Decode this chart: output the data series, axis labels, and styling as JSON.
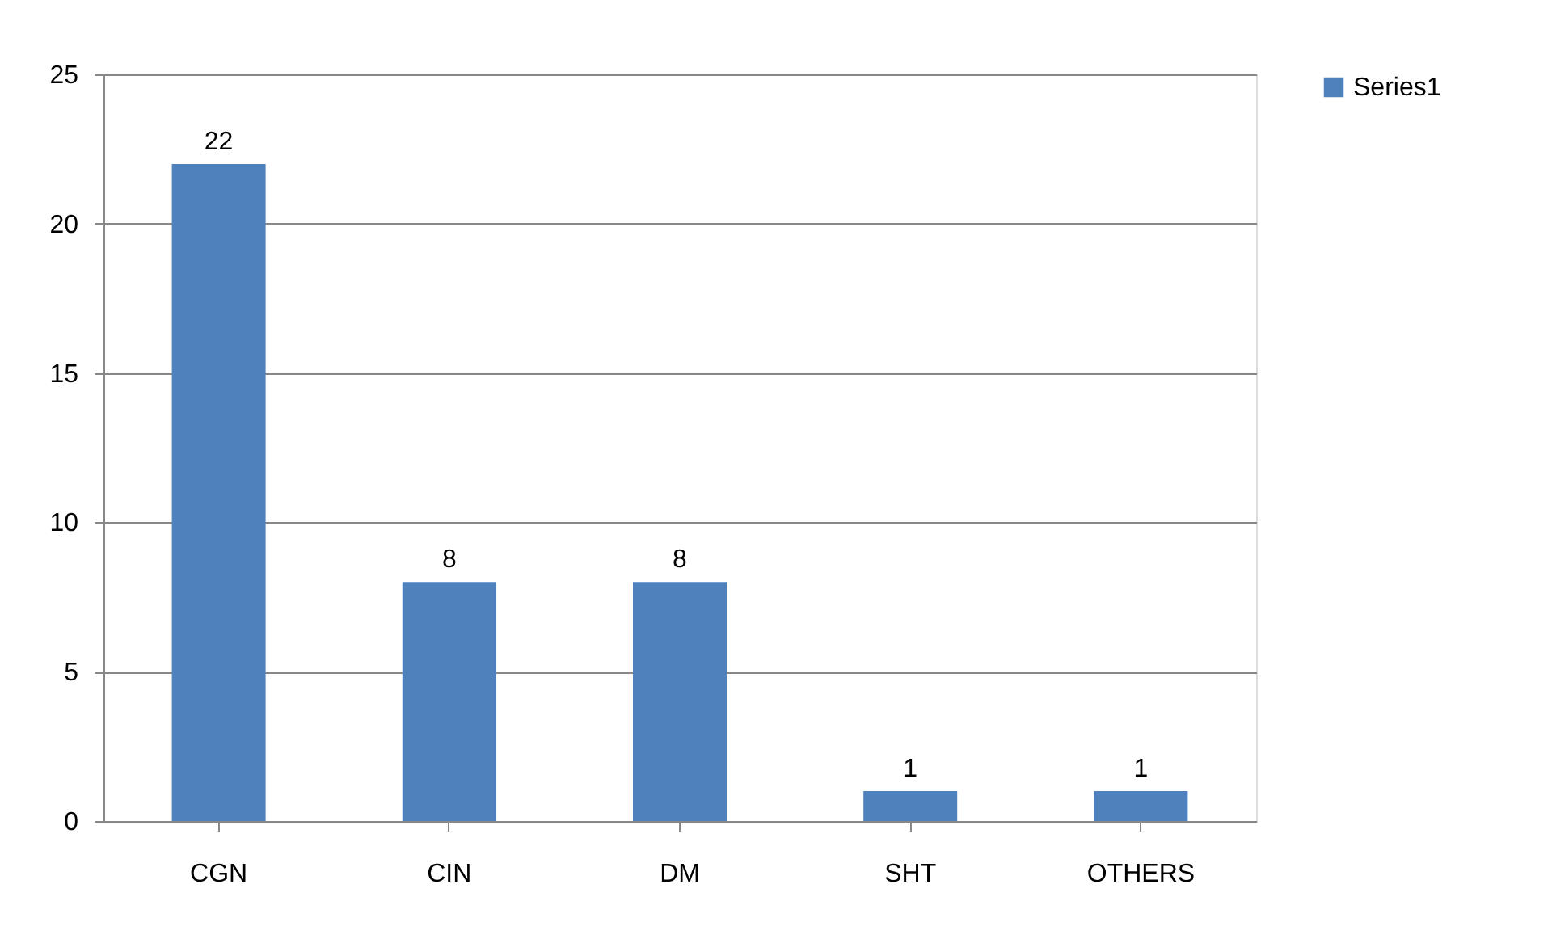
{
  "chart_data": {
    "type": "bar",
    "categories": [
      "CGN",
      "CIN",
      "DM",
      "SHT",
      "OTHERS"
    ],
    "series": [
      {
        "name": "Series1",
        "color": "#4f81bd",
        "values": [
          22,
          8,
          8,
          1,
          1
        ]
      }
    ],
    "ylim": [
      0,
      25
    ],
    "yticks": [
      0,
      5,
      10,
      15,
      20,
      25
    ],
    "grid": "y",
    "legend": "right",
    "data_labels": true
  }
}
